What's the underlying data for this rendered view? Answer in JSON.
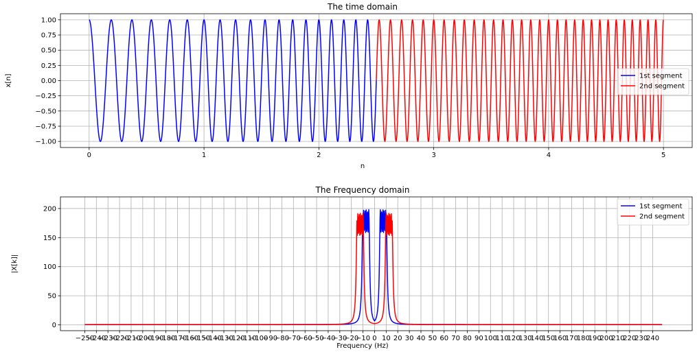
{
  "chart_data": [
    {
      "type": "line",
      "title": "The time domain",
      "xlabel": "n",
      "ylabel": "x[n]",
      "xlim": [
        -0.25,
        5.25
      ],
      "ylim": [
        -1.1,
        1.1
      ],
      "xticks": [
        0,
        1,
        2,
        3,
        4,
        5
      ],
      "xtick_labels": [
        "0",
        "1",
        "2",
        "3",
        "4",
        "5"
      ],
      "yticks": [
        1.0,
        0.75,
        0.5,
        0.25,
        0.0,
        -0.25,
        -0.5,
        -0.75,
        -1.0
      ],
      "ytick_labels": [
        "1.00",
        "0.75",
        "0.50",
        "0.25",
        "0.00",
        "−0.25",
        "−0.50",
        "−0.75",
        "−1.00"
      ],
      "grid": true,
      "legend_position": "right",
      "series": [
        {
          "name": "1st segment",
          "color": "#0000ff",
          "description": "cosine chirp, frequency rising from ~5 to ~10 cycles per unit",
          "x_range": [
            0,
            2.5
          ],
          "x": [
            0,
            0.1,
            0.2,
            0.3,
            0.4,
            0.5,
            1.0,
            1.5,
            2.0,
            2.5
          ],
          "y": [
            1.0,
            -1.0,
            1.0,
            -1.0,
            1.0,
            -1.0,
            1.0,
            -1.0,
            1.0,
            -0.12
          ]
        },
        {
          "name": "2nd segment",
          "color": "#ff0000",
          "description": "cosine chirp, frequency rising from ~10 to ~15 cycles per unit",
          "x_range": [
            2.5,
            5
          ],
          "x": [
            2.5,
            2.55,
            2.6,
            3.0,
            3.5,
            4.0,
            4.5,
            5.0
          ],
          "y": [
            0.0,
            1.0,
            -1.0,
            1.0,
            -1.0,
            1.0,
            -1.0,
            1.0
          ]
        }
      ]
    },
    {
      "type": "line",
      "title": "The Frequency domain",
      "xlabel": "Frequency (Hz)",
      "ylabel": "|X[k]|",
      "xlim": [
        -271,
        274
      ],
      "ylim": [
        -10,
        220
      ],
      "xticks": [
        -250,
        -240,
        -230,
        -220,
        -210,
        -200,
        -190,
        -180,
        -170,
        -160,
        -150,
        -140,
        -130,
        -120,
        -110,
        -100,
        -90,
        -80,
        -70,
        -60,
        -50,
        -40,
        -30,
        -20,
        -10,
        0,
        10,
        20,
        30,
        40,
        50,
        60,
        70,
        80,
        90,
        100,
        110,
        120,
        130,
        140,
        150,
        160,
        170,
        180,
        190,
        200,
        210,
        220,
        230,
        240
      ],
      "xtick_labels": [
        "−250",
        "−240",
        "−230",
        "−220",
        "−210",
        "−200",
        "−190",
        "−180",
        "−170",
        "−160",
        "−150",
        "−140",
        "−130",
        "−120",
        "−110",
        "−100",
        "−90",
        "−80",
        "−70",
        "−60",
        "−50",
        "−40",
        "−30",
        "−20",
        "−10",
        "0",
        "10",
        "20",
        "30",
        "40",
        "50",
        "60",
        "70",
        "80",
        "90",
        "100",
        "110",
        "120",
        "130",
        "140",
        "150",
        "160",
        "170",
        "180",
        "190",
        "200",
        "210",
        "220",
        "230",
        "240"
      ],
      "yticks": [
        200,
        150,
        100,
        50,
        0
      ],
      "ytick_labels": [
        "200",
        "150",
        "100",
        "50",
        "0"
      ],
      "grid": true,
      "legend_position": "upper right",
      "series": [
        {
          "name": "1st segment",
          "color": "#0000ff",
          "description": "symmetric magnitude spectrum, passband approx 5 to 10 Hz",
          "x": [
            -250,
            -50,
            -30,
            -20,
            -15,
            -12,
            -11,
            -10,
            -9,
            -8,
            -7,
            -6,
            -5,
            -4,
            -3,
            0,
            3,
            4,
            5,
            6,
            7,
            8,
            9,
            10,
            11,
            12,
            15,
            20,
            30,
            50,
            248
          ],
          "y": [
            0.5,
            1.5,
            4,
            8,
            20,
            60,
            140,
            210,
            175,
            205,
            170,
            210,
            200,
            60,
            25,
            8,
            25,
            60,
            200,
            210,
            170,
            205,
            175,
            210,
            140,
            60,
            20,
            8,
            4,
            1.5,
            0.5
          ]
        },
        {
          "name": "2nd segment",
          "color": "#ff0000",
          "description": "symmetric magnitude spectrum, passband approx 10 to 15 Hz",
          "x": [
            -250,
            -50,
            -30,
            -25,
            -20,
            -17,
            -16,
            -15,
            -14,
            -13,
            -12,
            -11,
            -10,
            -9,
            -8,
            -5,
            0,
            5,
            8,
            9,
            10,
            11,
            12,
            13,
            14,
            15,
            16,
            17,
            20,
            25,
            30,
            50,
            248
          ],
          "y": [
            0.5,
            2,
            4,
            8,
            15,
            60,
            140,
            205,
            170,
            200,
            175,
            205,
            195,
            60,
            20,
            6,
            3,
            6,
            20,
            60,
            195,
            205,
            175,
            200,
            170,
            205,
            140,
            60,
            15,
            8,
            4,
            2,
            0.5
          ]
        }
      ]
    }
  ]
}
